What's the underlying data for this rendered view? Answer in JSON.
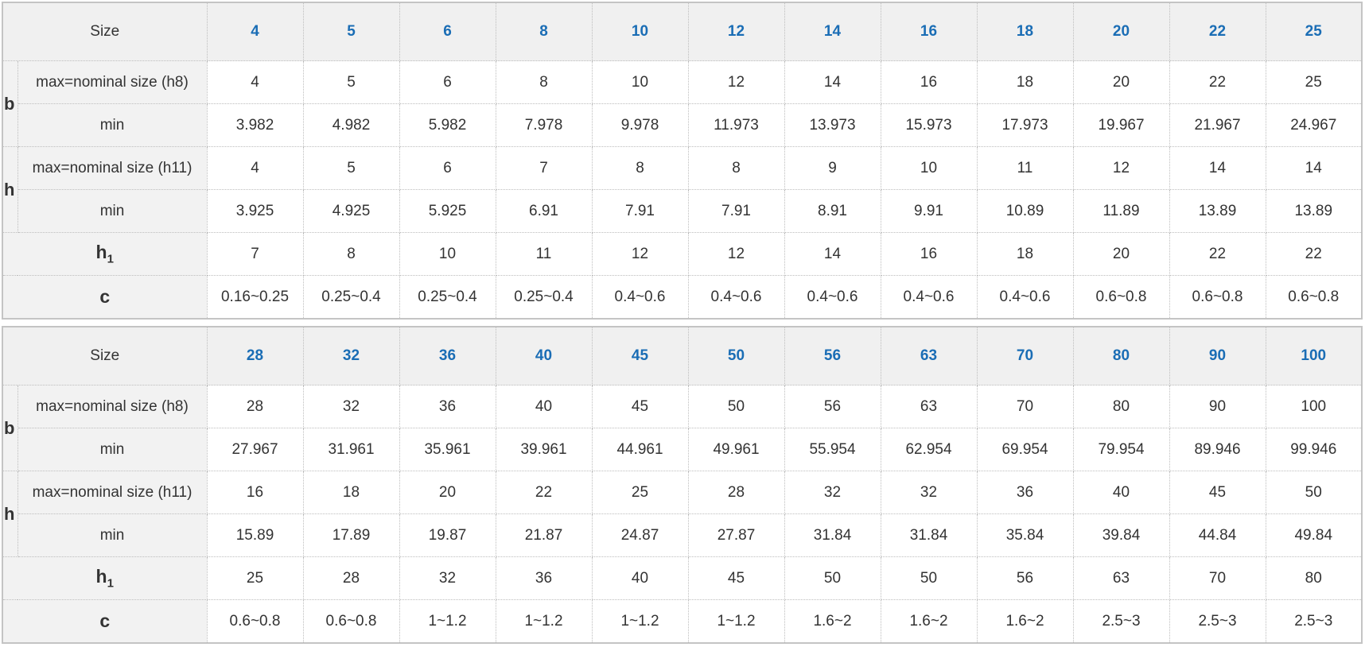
{
  "labels": {
    "size": "Size",
    "b": "b",
    "h": "h",
    "b_max": "max=nominal size (h8)",
    "h_max": "max=nominal size (h11)",
    "min": "min",
    "h1_base": "h",
    "h1_sub": "1",
    "c": "c"
  },
  "accent_color": "#1a6db5",
  "tables": [
    {
      "sizes": [
        "4",
        "5",
        "6",
        "8",
        "10",
        "12",
        "14",
        "16",
        "18",
        "20",
        "22",
        "25"
      ],
      "b_max": [
        "4",
        "5",
        "6",
        "8",
        "10",
        "12",
        "14",
        "16",
        "18",
        "20",
        "22",
        "25"
      ],
      "b_min": [
        "3.982",
        "4.982",
        "5.982",
        "7.978",
        "9.978",
        "11.973",
        "13.973",
        "15.973",
        "17.973",
        "19.967",
        "21.967",
        "24.967"
      ],
      "h_max": [
        "4",
        "5",
        "6",
        "7",
        "8",
        "8",
        "9",
        "10",
        "11",
        "12",
        "14",
        "14"
      ],
      "h_min": [
        "3.925",
        "4.925",
        "5.925",
        "6.91",
        "7.91",
        "7.91",
        "8.91",
        "9.91",
        "10.89",
        "11.89",
        "13.89",
        "13.89"
      ],
      "h1": [
        "7",
        "8",
        "10",
        "11",
        "12",
        "12",
        "14",
        "16",
        "18",
        "20",
        "22",
        "22"
      ],
      "c": [
        "0.16~0.25",
        "0.25~0.4",
        "0.25~0.4",
        "0.25~0.4",
        "0.4~0.6",
        "0.4~0.6",
        "0.4~0.6",
        "0.4~0.6",
        "0.4~0.6",
        "0.6~0.8",
        "0.6~0.8",
        "0.6~0.8"
      ]
    },
    {
      "sizes": [
        "28",
        "32",
        "36",
        "40",
        "45",
        "50",
        "56",
        "63",
        "70",
        "80",
        "90",
        "100"
      ],
      "b_max": [
        "28",
        "32",
        "36",
        "40",
        "45",
        "50",
        "56",
        "63",
        "70",
        "80",
        "90",
        "100"
      ],
      "b_min": [
        "27.967",
        "31.961",
        "35.961",
        "39.961",
        "44.961",
        "49.961",
        "55.954",
        "62.954",
        "69.954",
        "79.954",
        "89.946",
        "99.946"
      ],
      "h_max": [
        "16",
        "18",
        "20",
        "22",
        "25",
        "28",
        "32",
        "32",
        "36",
        "40",
        "45",
        "50"
      ],
      "h_min": [
        "15.89",
        "17.89",
        "19.87",
        "21.87",
        "24.87",
        "27.87",
        "31.84",
        "31.84",
        "35.84",
        "39.84",
        "44.84",
        "49.84"
      ],
      "h1": [
        "25",
        "28",
        "32",
        "36",
        "40",
        "45",
        "50",
        "50",
        "56",
        "63",
        "70",
        "80"
      ],
      "c": [
        "0.6~0.8",
        "0.6~0.8",
        "1~1.2",
        "1~1.2",
        "1~1.2",
        "1~1.2",
        "1.6~2",
        "1.6~2",
        "1.6~2",
        "2.5~3",
        "2.5~3",
        "2.5~3"
      ]
    }
  ]
}
